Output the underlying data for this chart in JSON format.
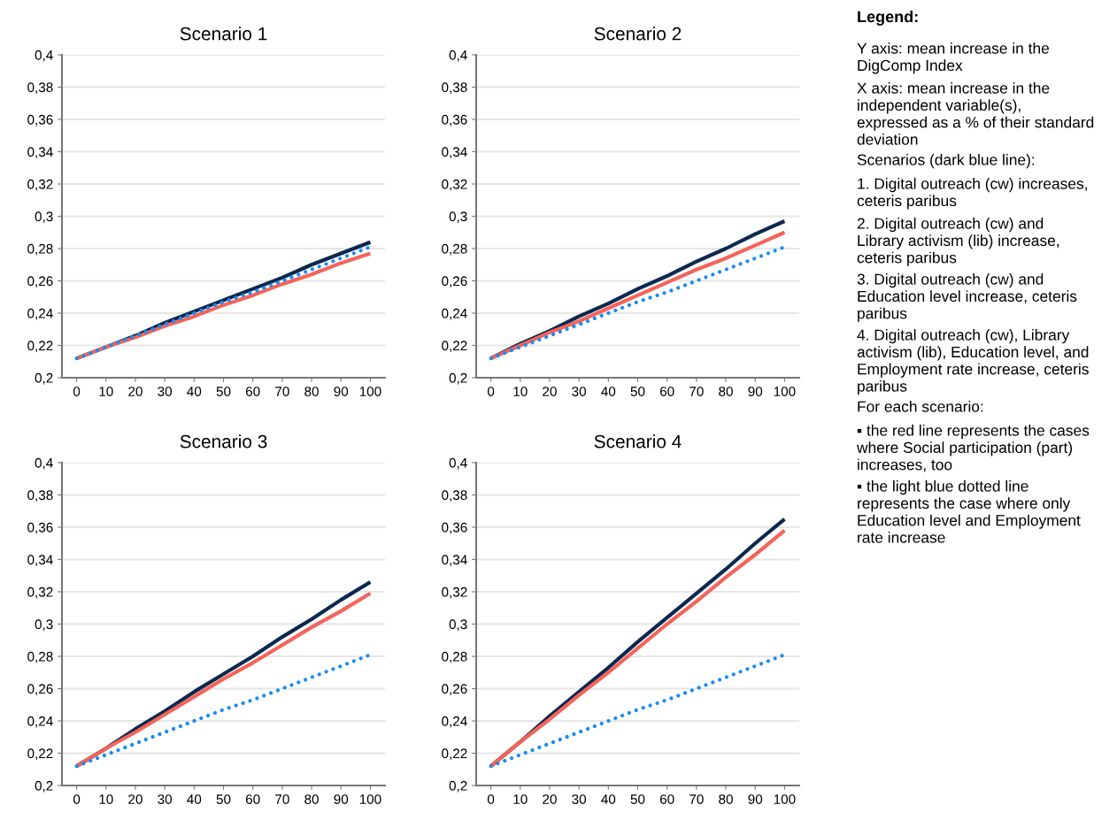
{
  "chart_data": [
    {
      "type": "line",
      "title": "Scenario 1",
      "categories": [
        "0",
        "10",
        "20",
        "30",
        "40",
        "50",
        "60",
        "70",
        "80",
        "90",
        "100"
      ],
      "ylim": [
        0.2,
        0.4
      ],
      "yticks": [
        {
          "value": 0.2,
          "label": "0,2"
        },
        {
          "value": 0.22,
          "label": "0,22"
        },
        {
          "value": 0.24,
          "label": "0,24"
        },
        {
          "value": 0.26,
          "label": "0,26"
        },
        {
          "value": 0.28,
          "label": "0,28"
        },
        {
          "value": 0.3,
          "label": "0,3"
        },
        {
          "value": 0.32,
          "label": "0,32"
        },
        {
          "value": 0.34,
          "label": "0,34"
        },
        {
          "value": 0.36,
          "label": "0,36"
        },
        {
          "value": 0.38,
          "label": "0,38"
        },
        {
          "value": 0.4,
          "label": "0,4"
        }
      ],
      "grid": "y",
      "legend": false,
      "marker": "none",
      "series": [
        {
          "color": "#0b2850",
          "line_style": "solid",
          "values": [
            0.212,
            0.219,
            0.226,
            0.234,
            0.241,
            0.248,
            0.255,
            0.262,
            0.27,
            0.277,
            0.284
          ]
        },
        {
          "color": "#f4645a",
          "line_style": "solid",
          "values": [
            0.212,
            0.219,
            0.225,
            0.232,
            0.238,
            0.245,
            0.251,
            0.258,
            0.264,
            0.271,
            0.277
          ]
        },
        {
          "color": "#1a8cf0",
          "line_style": "dotted",
          "values": [
            0.212,
            0.219,
            0.226,
            0.233,
            0.24,
            0.247,
            0.253,
            0.26,
            0.267,
            0.274,
            0.281
          ]
        }
      ]
    },
    {
      "type": "line",
      "title": "Scenario 2",
      "categories": [
        "0",
        "10",
        "20",
        "30",
        "40",
        "50",
        "60",
        "70",
        "80",
        "90",
        "100"
      ],
      "ylim": [
        0.2,
        0.4
      ],
      "yticks": [
        {
          "value": 0.2,
          "label": "0,2"
        },
        {
          "value": 0.22,
          "label": "0,22"
        },
        {
          "value": 0.24,
          "label": "0,24"
        },
        {
          "value": 0.26,
          "label": "0,26"
        },
        {
          "value": 0.28,
          "label": "0,28"
        },
        {
          "value": 0.3,
          "label": "0,3"
        },
        {
          "value": 0.32,
          "label": "0,32"
        },
        {
          "value": 0.34,
          "label": "0,34"
        },
        {
          "value": 0.36,
          "label": "0,36"
        },
        {
          "value": 0.38,
          "label": "0,38"
        },
        {
          "value": 0.4,
          "label": "0,4"
        }
      ],
      "grid": "y",
      "legend": false,
      "marker": "none",
      "series": [
        {
          "color": "#0b2850",
          "line_style": "solid",
          "values": [
            0.212,
            0.221,
            0.229,
            0.238,
            0.246,
            0.255,
            0.263,
            0.272,
            0.28,
            0.289,
            0.297
          ]
        },
        {
          "color": "#f4645a",
          "line_style": "solid",
          "values": [
            0.212,
            0.22,
            0.228,
            0.235,
            0.243,
            0.251,
            0.259,
            0.267,
            0.274,
            0.282,
            0.29
          ]
        },
        {
          "color": "#1a8cf0",
          "line_style": "dotted",
          "values": [
            0.212,
            0.219,
            0.226,
            0.233,
            0.24,
            0.247,
            0.253,
            0.26,
            0.267,
            0.274,
            0.281
          ]
        }
      ]
    },
    {
      "type": "line",
      "title": "Scenario 3",
      "categories": [
        "0",
        "10",
        "20",
        "30",
        "40",
        "50",
        "60",
        "70",
        "80",
        "90",
        "100"
      ],
      "ylim": [
        0.2,
        0.4
      ],
      "yticks": [
        {
          "value": 0.2,
          "label": "0,2"
        },
        {
          "value": 0.22,
          "label": "0,22"
        },
        {
          "value": 0.24,
          "label": "0,24"
        },
        {
          "value": 0.26,
          "label": "0,26"
        },
        {
          "value": 0.28,
          "label": "0,28"
        },
        {
          "value": 0.3,
          "label": "0,3"
        },
        {
          "value": 0.32,
          "label": "0,32"
        },
        {
          "value": 0.34,
          "label": "0,34"
        },
        {
          "value": 0.36,
          "label": "0,36"
        },
        {
          "value": 0.38,
          "label": "0,38"
        },
        {
          "value": 0.4,
          "label": "0,4"
        }
      ],
      "grid": "y",
      "legend": false,
      "marker": "none",
      "series": [
        {
          "color": "#0b2850",
          "line_style": "solid",
          "values": [
            0.212,
            0.223,
            0.235,
            0.246,
            0.258,
            0.269,
            0.28,
            0.292,
            0.303,
            0.315,
            0.326
          ]
        },
        {
          "color": "#f4645a",
          "line_style": "solid",
          "values": [
            0.212,
            0.223,
            0.233,
            0.244,
            0.255,
            0.266,
            0.276,
            0.287,
            0.298,
            0.308,
            0.319
          ]
        },
        {
          "color": "#1a8cf0",
          "line_style": "dotted",
          "values": [
            0.212,
            0.219,
            0.226,
            0.233,
            0.24,
            0.247,
            0.253,
            0.26,
            0.267,
            0.274,
            0.281
          ]
        }
      ]
    },
    {
      "type": "line",
      "title": "Scenario 4",
      "categories": [
        "0",
        "10",
        "20",
        "30",
        "40",
        "50",
        "60",
        "70",
        "80",
        "90",
        "100"
      ],
      "ylim": [
        0.2,
        0.4
      ],
      "yticks": [
        {
          "value": 0.2,
          "label": "0,2"
        },
        {
          "value": 0.22,
          "label": "0,22"
        },
        {
          "value": 0.24,
          "label": "0,24"
        },
        {
          "value": 0.26,
          "label": "0,26"
        },
        {
          "value": 0.28,
          "label": "0,28"
        },
        {
          "value": 0.3,
          "label": "0,3"
        },
        {
          "value": 0.32,
          "label": "0,32"
        },
        {
          "value": 0.34,
          "label": "0,34"
        },
        {
          "value": 0.36,
          "label": "0,36"
        },
        {
          "value": 0.38,
          "label": "0,38"
        },
        {
          "value": 0.4,
          "label": "0,4"
        }
      ],
      "grid": "y",
      "legend": false,
      "marker": "none",
      "series": [
        {
          "color": "#0b2850",
          "line_style": "solid",
          "values": [
            0.212,
            0.227,
            0.243,
            0.258,
            0.273,
            0.289,
            0.304,
            0.319,
            0.334,
            0.35,
            0.365
          ]
        },
        {
          "color": "#f4645a",
          "line_style": "solid",
          "values": [
            0.212,
            0.227,
            0.241,
            0.256,
            0.27,
            0.285,
            0.3,
            0.314,
            0.329,
            0.343,
            0.358
          ]
        },
        {
          "color": "#1a8cf0",
          "line_style": "dotted",
          "values": [
            0.212,
            0.219,
            0.226,
            0.233,
            0.24,
            0.247,
            0.253,
            0.26,
            0.267,
            0.274,
            0.281
          ]
        }
      ]
    },
    {
      "type": "other",
      "title": "Legend:",
      "annotations": [
        "Y axis: mean increase in the DigComp Index",
        "X axis: mean increase in the independent variable(s), expressed as a % of their standard deviation",
        "Scenarios (dark blue line):",
        "1. Digital outreach (cw) increases, ceteris paribus",
        "2. Digital outreach (cw) and Library activism (lib) increase, ceteris paribus",
        "3. Digital outreach (cw) and Education level increase, ceteris paribus",
        "4. Digital outreach (cw), Library activism (lib), Education level, and Employment rate increase, ceteris paribus",
        "For each scenario:",
        "▪ the red line represents the cases where Social participation (part) increases, too",
        "▪ the light blue dotted line represents the case where only Education level and Employment rate increase"
      ]
    }
  ]
}
